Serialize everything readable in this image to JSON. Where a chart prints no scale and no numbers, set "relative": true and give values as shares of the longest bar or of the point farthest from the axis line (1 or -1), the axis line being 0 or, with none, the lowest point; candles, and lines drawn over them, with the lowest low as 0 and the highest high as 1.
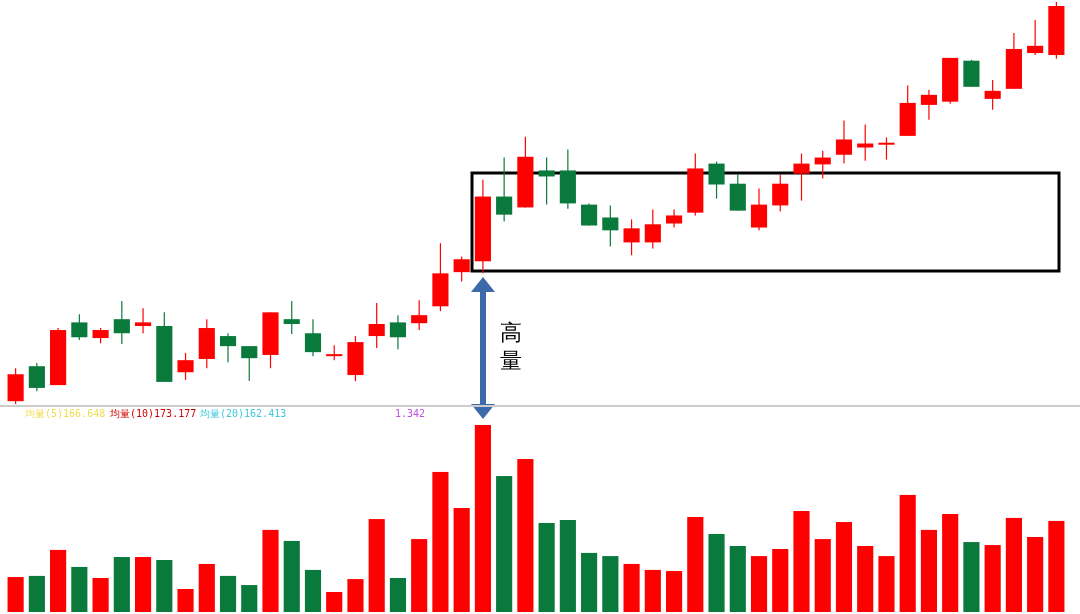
{
  "chart_data": [
    {
      "type": "candlestick",
      "relative": true,
      "categories": [
        null,
        null,
        null,
        null,
        null,
        null,
        null,
        null,
        null,
        null,
        null,
        null,
        null,
        null,
        null,
        null,
        null,
        null,
        null,
        null,
        null,
        null,
        null,
        null,
        null,
        null,
        null,
        null,
        null,
        null,
        null,
        null,
        null,
        null,
        null,
        null,
        null,
        null,
        null,
        null,
        null,
        null,
        null,
        null,
        null,
        null,
        null,
        null,
        null,
        null
      ],
      "ohlc": [
        [
          0.007,
          0.089,
          0,
          0.074
        ],
        [
          0.094,
          0.102,
          0.032,
          0.04
        ],
        [
          0.047,
          0.189,
          0.047,
          0.184
        ],
        [
          0.203,
          0.223,
          0.159,
          0.166
        ],
        [
          0.164,
          0.189,
          0.151,
          0.184
        ],
        [
          0.211,
          0.256,
          0.149,
          0.176
        ],
        [
          0.194,
          0.238,
          0.176,
          0.203
        ],
        [
          0.194,
          0.228,
          0.055,
          0.055
        ],
        [
          0.079,
          0.127,
          0.06,
          0.109
        ],
        [
          0.112,
          0.211,
          0.089,
          0.189
        ],
        [
          0.169,
          0.176,
          0.104,
          0.144
        ],
        [
          0.144,
          0.144,
          0.057,
          0.114
        ],
        [
          0.122,
          0.228,
          0.089,
          0.228
        ],
        [
          0.211,
          0.256,
          0.174,
          0.199
        ],
        [
          0.176,
          0.211,
          0.119,
          0.129
        ],
        [
          0.119,
          0.146,
          0.109,
          0.124
        ],
        [
          0.072,
          0.169,
          0.057,
          0.154
        ],
        [
          0.169,
          0.251,
          0.139,
          0.199
        ],
        [
          0.203,
          0.221,
          0.136,
          0.166
        ],
        [
          0.201,
          0.258,
          0.184,
          0.221
        ],
        [
          0.243,
          0.4,
          0.231,
          0.325
        ],
        [
          0.328,
          0.367,
          0.305,
          0.36
        ],
        [
          0.355,
          0.558,
          0.325,
          0.516
        ],
        [
          0.516,
          0.613,
          0.454,
          0.471
        ],
        [
          0.489,
          0.665,
          0.489,
          0.615
        ],
        [
          0.581,
          0.613,
          0.496,
          0.566
        ],
        [
          0.581,
          0.633,
          0.486,
          0.499
        ],
        [
          0.496,
          0.499,
          0.444,
          0.444
        ],
        [
          0.464,
          0.494,
          0.392,
          0.432
        ],
        [
          0.402,
          0.459,
          0.37,
          0.437
        ],
        [
          0.402,
          0.484,
          0.387,
          0.447
        ],
        [
          0.449,
          0.484,
          0.439,
          0.469
        ],
        [
          0.476,
          0.623,
          0.469,
          0.586
        ],
        [
          0.598,
          0.603,
          0.511,
          0.546
        ],
        [
          0.548,
          0.571,
          0.481,
          0.481
        ],
        [
          0.439,
          0.536,
          0.432,
          0.496
        ],
        [
          0.494,
          0.571,
          0.479,
          0.548
        ],
        [
          0.573,
          0.623,
          0.506,
          0.598
        ],
        [
          0.596,
          0.63,
          0.561,
          0.613
        ],
        [
          0.62,
          0.705,
          0.598,
          0.658
        ],
        [
          0.638,
          0.695,
          0.605,
          0.648
        ],
        [
          0.645,
          0.663,
          0.608,
          0.65
        ],
        [
          0.667,
          0.792,
          0.667,
          0.749
        ],
        [
          0.744,
          0.782,
          0.707,
          0.769
        ],
        [
          0.752,
          0.861,
          0.747,
          0.861
        ],
        [
          0.854,
          0.856,
          0.789,
          0.789
        ],
        [
          0.759,
          0.806,
          0.732,
          0.779
        ],
        [
          0.784,
          0.923,
          0.784,
          0.883
        ],
        [
          0.873,
          0.955,
          0.868,
          0.891
        ],
        [
          0.868,
          1,
          0.859,
          0.99
        ]
      ],
      "colors": [
        "#ff0000",
        "#0a7a3c",
        "#ff0000",
        "#0a7a3c",
        "#ff0000",
        "#0a7a3c",
        "#ff0000",
        "#0a7a3c",
        "#ff0000",
        "#ff0000",
        "#0a7a3c",
        "#0a7a3c",
        "#ff0000",
        "#0a7a3c",
        "#0a7a3c",
        "#ff0000",
        "#ff0000",
        "#ff0000",
        "#0a7a3c",
        "#ff0000",
        "#ff0000",
        "#ff0000",
        "#ff0000",
        "#0a7a3c",
        "#ff0000",
        "#0a7a3c",
        "#0a7a3c",
        "#0a7a3c",
        "#0a7a3c",
        "#ff0000",
        "#ff0000",
        "#ff0000",
        "#ff0000",
        "#0a7a3c",
        "#0a7a3c",
        "#ff0000",
        "#ff0000",
        "#ff0000",
        "#ff0000",
        "#ff0000",
        "#ff0000",
        "#ff0000",
        "#ff0000",
        "#ff0000",
        "#ff0000",
        "#0a7a3c",
        "#ff0000",
        "#ff0000",
        "#ff0000",
        "#ff0000"
      ],
      "annotations": [
        "高量"
      ]
    },
    {
      "type": "bar",
      "relative": true,
      "categories": [
        null,
        null,
        null,
        null,
        null,
        null,
        null,
        null,
        null,
        null,
        null,
        null,
        null,
        null,
        null,
        null,
        null,
        null,
        null,
        null,
        null,
        null,
        null,
        null,
        null,
        null,
        null,
        null,
        null,
        null,
        null,
        null,
        null,
        null,
        null,
        null,
        null,
        null,
        null,
        null,
        null,
        null,
        null,
        null,
        null,
        null,
        null,
        null,
        null,
        null
      ],
      "values": [
        0.187,
        0.193,
        0.332,
        0.241,
        0.182,
        0.294,
        0.294,
        0.278,
        0.123,
        0.257,
        0.193,
        0.144,
        0.439,
        0.38,
        0.225,
        0.107,
        0.176,
        0.497,
        0.182,
        0.39,
        0.749,
        0.556,
        1,
        0.727,
        0.818,
        0.476,
        0.492,
        0.316,
        0.299,
        0.257,
        0.225,
        0.219,
        0.508,
        0.417,
        0.353,
        0.299,
        0.337,
        0.54,
        0.39,
        0.481,
        0.353,
        0.299,
        0.626,
        0.439,
        0.524,
        0.374,
        0.358,
        0.503,
        0.401,
        0.487
      ],
      "colors": [
        "#ff0000",
        "#0a7a3c",
        "#ff0000",
        "#0a7a3c",
        "#ff0000",
        "#0a7a3c",
        "#ff0000",
        "#0a7a3c",
        "#ff0000",
        "#ff0000",
        "#0a7a3c",
        "#0a7a3c",
        "#ff0000",
        "#0a7a3c",
        "#0a7a3c",
        "#ff0000",
        "#ff0000",
        "#ff0000",
        "#0a7a3c",
        "#ff0000",
        "#ff0000",
        "#ff0000",
        "#ff0000",
        "#0a7a3c",
        "#ff0000",
        "#0a7a3c",
        "#0a7a3c",
        "#0a7a3c",
        "#0a7a3c",
        "#ff0000",
        "#ff0000",
        "#ff0000",
        "#ff0000",
        "#0a7a3c",
        "#0a7a3c",
        "#ff0000",
        "#ff0000",
        "#ff0000",
        "#ff0000",
        "#ff0000",
        "#ff0000",
        "#ff0000",
        "#ff0000",
        "#ff0000",
        "#ff0000",
        "#0a7a3c",
        "#ff0000",
        "#ff0000",
        "#ff0000",
        "#ff0000"
      ],
      "annotations": [
        "均量(5)166.648",
        "均量(10)173.177",
        "均量(20)162.413",
        "1.342"
      ]
    }
  ]
}
